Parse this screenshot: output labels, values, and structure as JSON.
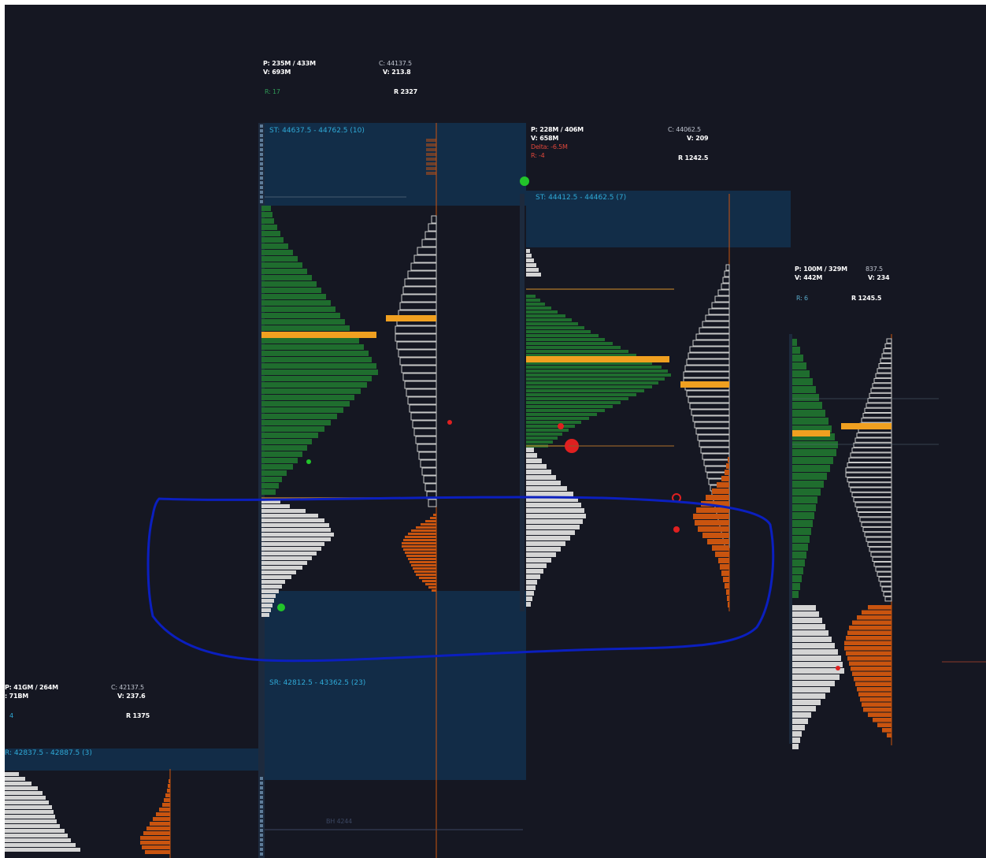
{
  "chart_data": {
    "type": "volume-profile",
    "colors": {
      "background": "#151722",
      "buy_volume": "#1f6d2e",
      "sell_volume": "#d4d4d4",
      "delta_negative": "#c9540f",
      "delta_outline": "#c8c8c8",
      "poc": "#f0a020",
      "zone": "#12304d",
      "annotation": "#0b1fbf",
      "dot_green": "#22c42a",
      "dot_red": "#e02020",
      "zone_text": "#2fa9d6"
    },
    "profiles": [
      {
        "id": "A",
        "stats": {
          "line1_left": "P: 41GM / 264M",
          "line1_right": "C: 42137.5",
          "line2_left": ": 71BM",
          "line2_right": "V: 237.6",
          "line4_left": "4",
          "line4_right": "R 1375"
        },
        "zone": "R: 42837.5 - 42887.5 (3)",
        "volume_levels": [
          18,
          26,
          34,
          42,
          48,
          52,
          56,
          60,
          62,
          64,
          66,
          70,
          76,
          80,
          84,
          90,
          96
        ],
        "delta_levels": [
          2,
          3,
          4,
          6,
          8,
          10,
          14,
          18,
          22,
          26,
          30,
          34,
          38,
          38,
          36,
          32
        ]
      },
      {
        "id": "B",
        "stats": {
          "line1_left": "P: 235M / 433M",
          "line1_right": "C: 44137.5",
          "line2_left": "V: 693M",
          "line2_right": "V: 213.8",
          "line4_left": "R: 17",
          "line4_right": "R 2327"
        },
        "zone_top": "ST: 44637.5 - 44762.5 (10)",
        "zone_bottom": "SR: 42812.5 - 43362.5 (23)",
        "buy_levels": [
          12,
          14,
          16,
          20,
          24,
          28,
          34,
          40,
          46,
          52,
          58,
          64,
          70,
          76,
          82,
          88,
          94,
          100,
          106,
          112,
          118,
          124,
          130,
          136,
          140,
          146,
          148,
          140,
          134,
          126,
          118,
          112,
          104,
          96,
          88,
          80,
          72,
          64,
          58,
          52,
          46,
          40,
          32,
          26,
          22,
          18
        ],
        "sell_levels": [
          24,
          36,
          56,
          72,
          80,
          86,
          88,
          92,
          88,
          80,
          76,
          70,
          64,
          58,
          52,
          44,
          38,
          30,
          26,
          22,
          18,
          16,
          14,
          12,
          10
        ],
        "delta_outline_levels": [
          6,
          10,
          14,
          18,
          24,
          28,
          32,
          36,
          40,
          42,
          44,
          46,
          48,
          50,
          52,
          52,
          50,
          48,
          46,
          44,
          42,
          40,
          38,
          36,
          34,
          32,
          30,
          28,
          26,
          24,
          22,
          20,
          18,
          16,
          14,
          12,
          10
        ],
        "delta_levels": [
          4,
          8,
          14,
          20,
          26,
          32,
          36,
          40,
          42,
          44,
          44,
          42,
          40,
          38,
          36,
          34,
          32,
          30,
          28,
          26,
          22,
          18,
          14,
          10,
          6
        ]
      },
      {
        "id": "C",
        "stats": {
          "line1_left": "P: 228M / 406M",
          "line1_right": "C: 44062.5",
          "line2_left": "V: 658M",
          "line2_right": "V: 209",
          "line3_left": "Delta: -6.5M",
          "line4_left": "R: -4",
          "line4_right": "R 1242.5"
        },
        "zone_top": "ST: 44412.5 - 44462.5 (7)",
        "buy_levels": [
          12,
          18,
          24,
          32,
          40,
          50,
          58,
          66,
          74,
          82,
          92,
          100,
          110,
          120,
          130,
          140,
          150,
          160,
          172,
          180,
          184,
          176,
          168,
          160,
          150,
          140,
          130,
          120,
          110,
          100,
          90,
          80,
          70,
          62,
          54,
          46,
          40,
          34,
          28
        ],
        "sell_levels": [
          10,
          14,
          20,
          26,
          32,
          38,
          44,
          52,
          60,
          66,
          70,
          74,
          76,
          72,
          68,
          62,
          56,
          50,
          44,
          38,
          32,
          26,
          22,
          18,
          14,
          12,
          10,
          8,
          6
        ],
        "delta_outline_levels": [
          4,
          6,
          8,
          10,
          14,
          18,
          22,
          26,
          30,
          34,
          38,
          42,
          46,
          50,
          52,
          54,
          56,
          58,
          58,
          56,
          54,
          52,
          50,
          48,
          46,
          44,
          42,
          40,
          38,
          36,
          34,
          32,
          30,
          28,
          26,
          24,
          22,
          20,
          18,
          16,
          14,
          12,
          10,
          8,
          6
        ],
        "delta_levels": [
          2,
          4,
          6,
          10,
          16,
          22,
          30,
          36,
          42,
          46,
          44,
          40,
          34,
          28,
          22,
          18,
          14,
          12,
          10,
          8,
          6,
          4,
          3,
          2
        ]
      },
      {
        "id": "D",
        "stats": {
          "line1_left": "P: 100M / 329M",
          "line1_right": "837.5",
          "line2_left": "V: 442M",
          "line2_right": "V: 234",
          "line4_left": "R: 6",
          "line4_right": "R 1245.5"
        },
        "buy_levels": [
          6,
          10,
          14,
          18,
          22,
          26,
          30,
          34,
          38,
          42,
          46,
          50,
          54,
          58,
          56,
          52,
          48,
          44,
          40,
          36,
          32,
          30,
          28,
          26,
          24,
          22,
          20,
          18,
          16,
          14,
          12,
          10,
          8
        ],
        "sell_levels": [
          30,
          34,
          38,
          42,
          46,
          50,
          54,
          58,
          62,
          64,
          66,
          60,
          54,
          48,
          42,
          36,
          30,
          24,
          20,
          16,
          12,
          10,
          8
        ],
        "delta_outline_levels": [
          6,
          8,
          10,
          12,
          14,
          16,
          18,
          20,
          22,
          24,
          26,
          28,
          30,
          32,
          34,
          36,
          38,
          40,
          42,
          44,
          46,
          48,
          50,
          52,
          54,
          56,
          58,
          58,
          56,
          54,
          52,
          50,
          48,
          46,
          44,
          42,
          40,
          38,
          36,
          34,
          32,
          30,
          28,
          26,
          24,
          22,
          20,
          18,
          16,
          14,
          12,
          10,
          8
        ],
        "delta_levels": [
          30,
          38,
          44,
          50,
          54,
          56,
          58,
          60,
          60,
          58,
          56,
          54,
          52,
          50,
          48,
          46,
          44,
          42,
          40,
          38,
          36,
          30,
          24,
          18,
          12,
          6
        ]
      }
    ],
    "markers": [
      {
        "label": "ВН 4244"
      }
    ]
  }
}
